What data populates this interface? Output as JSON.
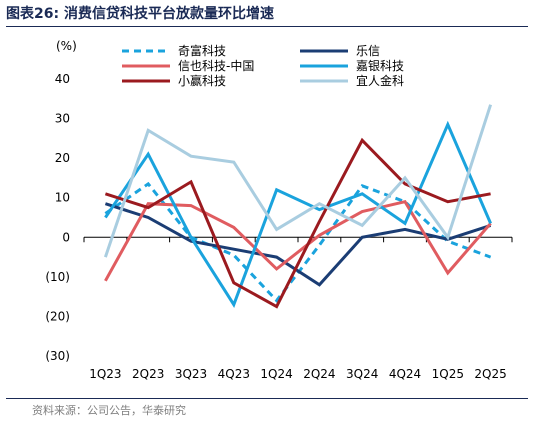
{
  "title": "图表26:  消费信贷科技平台放款量环比增速",
  "source": "资料来源：公司公告，华泰研究",
  "chart_data": {
    "type": "line",
    "ylabel": "(%)",
    "ylim": [
      -30,
      40
    ],
    "yticks": [
      40,
      30,
      20,
      10,
      0,
      -10,
      -20,
      -30
    ],
    "ytick_labels": [
      "40",
      "30",
      "20",
      "10",
      "0",
      "(10)",
      "(20)",
      "(30)"
    ],
    "categories": [
      "1Q23",
      "2Q23",
      "3Q23",
      "4Q23",
      "1Q24",
      "2Q24",
      "3Q24",
      "4Q24",
      "1Q25",
      "2Q25"
    ],
    "legend_position": "top",
    "series": [
      {
        "name": "奇富科技",
        "color": "#1aa3dd",
        "dash": true,
        "values": [
          6,
          13.5,
          0,
          -4.5,
          -16,
          -2,
          13,
          9,
          -1,
          -5
        ]
      },
      {
        "name": "乐信",
        "color": "#1b3d74",
        "dash": false,
        "values": [
          8.5,
          5,
          -1,
          -3,
          -5,
          -12,
          0,
          2,
          -0.5,
          3
        ]
      },
      {
        "name": "信也科技-中国",
        "color": "#e05c60",
        "dash": false,
        "values": [
          -11,
          8.5,
          8,
          2.5,
          -8,
          0.5,
          6.5,
          9,
          -9,
          3.5
        ]
      },
      {
        "name": "嘉银科技",
        "color": "#1aa3dd",
        "dash": false,
        "values": [
          5,
          21,
          0,
          -17,
          12,
          7,
          11,
          3.5,
          28.5,
          3.5
        ]
      },
      {
        "name": "小赢科技",
        "color": "#9b1a1f",
        "dash": false,
        "values": [
          11,
          7.5,
          14,
          -11.5,
          -17.5,
          4,
          24.5,
          13.5,
          9,
          11
        ]
      },
      {
        "name": "宜人金科",
        "color": "#a9cde0",
        "dash": false,
        "values": [
          -5,
          27,
          20.5,
          19,
          2,
          8.5,
          3,
          15,
          0,
          33.5
        ]
      }
    ]
  }
}
